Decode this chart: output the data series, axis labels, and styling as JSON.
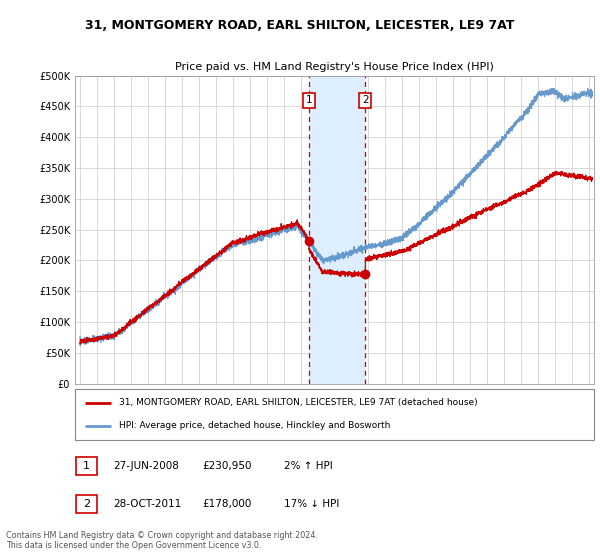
{
  "title": "31, MONTGOMERY ROAD, EARL SHILTON, LEICESTER, LE9 7AT",
  "subtitle": "Price paid vs. HM Land Registry's House Price Index (HPI)",
  "ylim": [
    0,
    500000
  ],
  "yticks": [
    0,
    50000,
    100000,
    150000,
    200000,
    250000,
    300000,
    350000,
    400000,
    450000,
    500000
  ],
  "ytick_labels": [
    "£0",
    "£50K",
    "£100K",
    "£150K",
    "£200K",
    "£250K",
    "£300K",
    "£350K",
    "£400K",
    "£450K",
    "£500K"
  ],
  "sale1_x": 2008.49,
  "sale1_price": 230950,
  "sale2_x": 2011.82,
  "sale2_price": 178000,
  "shade_x1": 2008.49,
  "shade_x2": 2011.82,
  "red_line_color": "#cc0000",
  "blue_line_color": "#6699cc",
  "shade_color": "#ddeeff",
  "legend_entry1": "31, MONTGOMERY ROAD, EARL SHILTON, LEICESTER, LE9 7AT (detached house)",
  "legend_entry2": "HPI: Average price, detached house, Hinckley and Bosworth",
  "table_border_color": "#cc0000",
  "footer_text": "Contains HM Land Registry data © Crown copyright and database right 2024.\nThis data is licensed under the Open Government Licence v3.0.",
  "xmin": 1994.7,
  "xmax": 2025.3
}
